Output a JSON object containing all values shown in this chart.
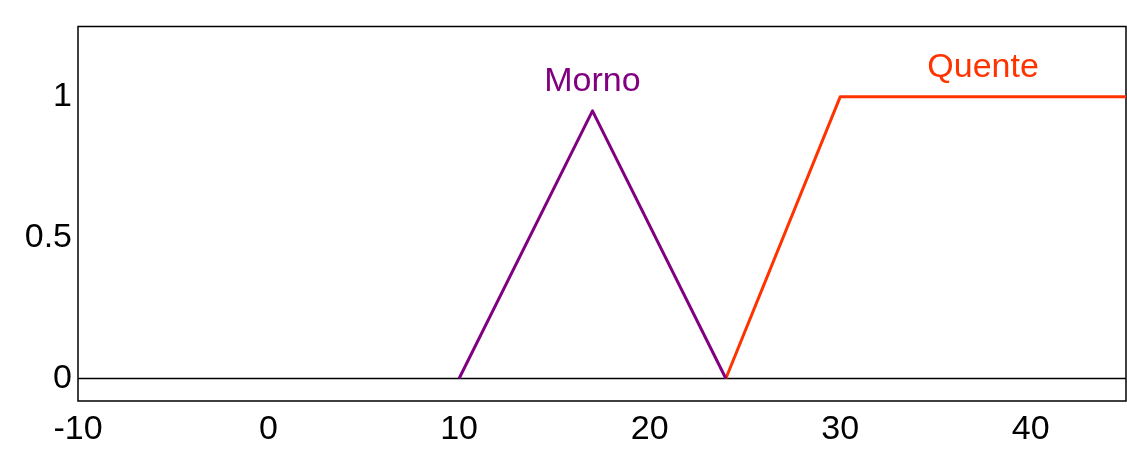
{
  "chart_data": {
    "type": "line",
    "series": [
      {
        "name": "Morno",
        "color": "#800080",
        "x": [
          10,
          17,
          24
        ],
        "values": [
          0,
          0.95,
          0
        ]
      },
      {
        "name": "Quente",
        "color": "#ff3300",
        "x": [
          24,
          30,
          45
        ],
        "values": [
          0,
          1,
          1
        ]
      }
    ],
    "xlim": [
      -10,
      45
    ],
    "xticks": [
      -10,
      0,
      10,
      20,
      30,
      40
    ],
    "ylim": [
      -0.08,
      1.25
    ],
    "yticks": [
      0,
      0.5,
      1
    ],
    "ref_lines": [
      {
        "axis": "y",
        "value": 0,
        "color": "#000000"
      }
    ],
    "grid": false,
    "legend": false,
    "marker": "none",
    "line_style": "solid"
  }
}
